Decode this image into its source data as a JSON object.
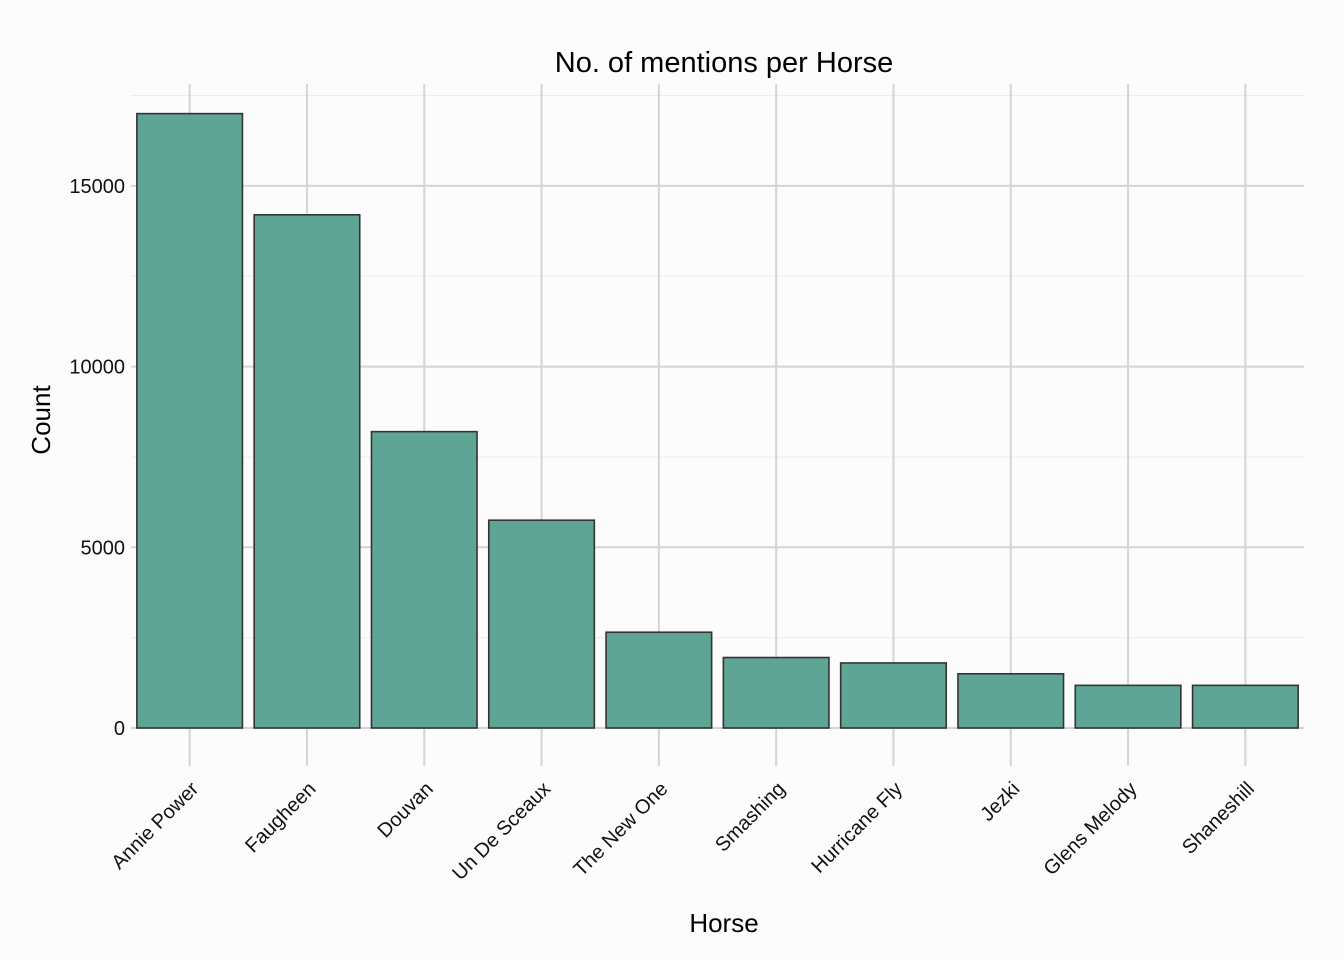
{
  "chart_data": {
    "type": "bar",
    "title": "No. of mentions per Horse",
    "xlabel": "Horse",
    "ylabel": "Count",
    "categories": [
      "Annie Power",
      "Faugheen",
      "Douvan",
      "Un De Sceaux",
      "The New One",
      "Smashing",
      "Hurricane Fly",
      "Jezki",
      "Glens Melody",
      "Shaneshill"
    ],
    "values": [
      17000,
      14200,
      8200,
      5750,
      2650,
      1950,
      1800,
      1500,
      1180,
      1180
    ],
    "yticks": [
      0,
      5000,
      10000,
      15000
    ],
    "ylim": [
      -750,
      17850
    ],
    "grid": true,
    "legend": "none",
    "bar_color": "#5fa596",
    "bar_outline": "#333333"
  }
}
